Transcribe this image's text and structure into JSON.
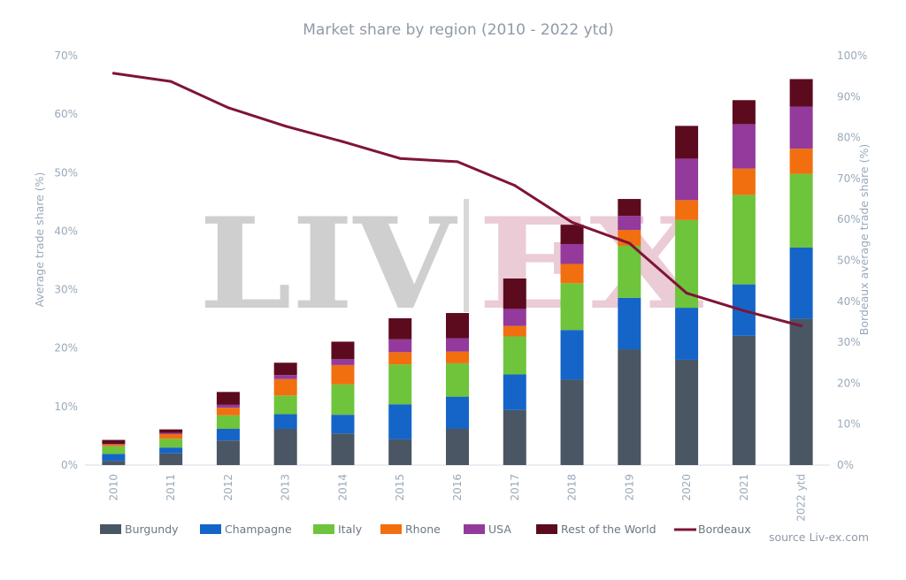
{
  "chart_data": {
    "type": "bar",
    "stacked": true,
    "title": "Market share by region (2010 - 2022 ytd)",
    "ylabel": "Average trade share (%)",
    "y2label": "Bordeaux average trade share (%)",
    "ylim": [
      0,
      70
    ],
    "y2lim": [
      0,
      100
    ],
    "yticks": [
      "0%",
      "10%",
      "20%",
      "30%",
      "40%",
      "50%",
      "60%",
      "70%"
    ],
    "y2ticks": [
      "0%",
      "10%",
      "20%",
      "30%",
      "40%",
      "50%",
      "60%",
      "70%",
      "80%",
      "90%",
      "100%"
    ],
    "categories": [
      "2010",
      "2011",
      "2012",
      "2013",
      "2014",
      "2015",
      "2016",
      "2017",
      "2018",
      "2019",
      "2020",
      "2021",
      "2022 ytd"
    ],
    "series": [
      {
        "name": "Burgundy",
        "color": "#4a5663",
        "values": [
          0.7,
          2.0,
          4.2,
          6.2,
          5.4,
          4.4,
          6.2,
          9.4,
          14.6,
          19.8,
          18.0,
          22.1,
          25.0
        ]
      },
      {
        "name": "Champagne",
        "color": "#1565c8",
        "values": [
          1.2,
          1.0,
          2.0,
          2.5,
          3.2,
          6.0,
          5.5,
          6.1,
          8.5,
          8.8,
          8.9,
          8.8,
          12.2
        ]
      },
      {
        "name": "Italy",
        "color": "#6ec43a",
        "values": [
          1.3,
          1.5,
          2.3,
          3.2,
          5.2,
          6.8,
          5.7,
          6.5,
          8.0,
          8.9,
          15.0,
          15.3,
          12.6
        ]
      },
      {
        "name": "Rhone",
        "color": "#f26f0f",
        "values": [
          0.3,
          0.8,
          1.3,
          2.8,
          3.3,
          2.1,
          2.0,
          1.8,
          3.3,
          2.7,
          3.4,
          4.5,
          4.3
        ]
      },
      {
        "name": "USA",
        "color": "#933a9c",
        "values": [
          0.1,
          0.2,
          0.5,
          0.7,
          1.0,
          2.2,
          2.3,
          2.9,
          3.4,
          2.4,
          7.1,
          7.6,
          7.2
        ]
      },
      {
        "name": "Rest of the World",
        "color": "#5c0b1e",
        "values": [
          0.7,
          0.6,
          2.2,
          2.1,
          3.0,
          3.6,
          4.3,
          5.2,
          3.3,
          2.9,
          5.6,
          4.1,
          4.7
        ]
      }
    ],
    "line_series": {
      "name": "Bordeaux",
      "color": "#7f1439",
      "axis": "right",
      "values": [
        95.7,
        93.7,
        87.3,
        82.8,
        79.0,
        74.9,
        74.1,
        68.3,
        59.3,
        54.2,
        42.0,
        37.7,
        34.0
      ]
    },
    "legend_position": "bottom",
    "grid": false
  },
  "watermark": {
    "left_text": "LIV",
    "right_text": "EX"
  },
  "source": "source Liv-ex.com"
}
